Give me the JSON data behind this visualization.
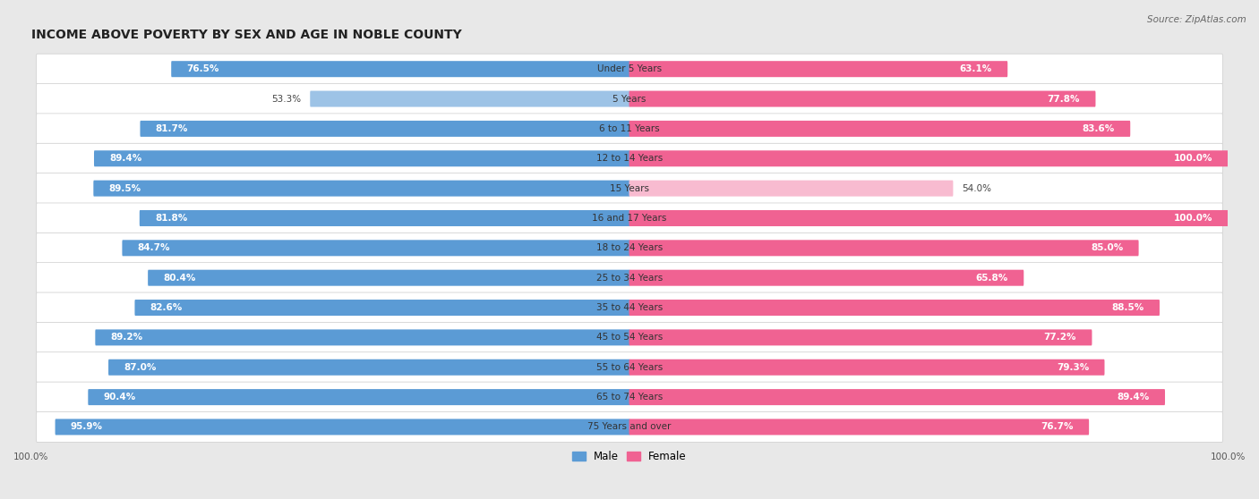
{
  "title": "INCOME ABOVE POVERTY BY SEX AND AGE IN NOBLE COUNTY",
  "source": "Source: ZipAtlas.com",
  "categories": [
    "Under 5 Years",
    "5 Years",
    "6 to 11 Years",
    "12 to 14 Years",
    "15 Years",
    "16 and 17 Years",
    "18 to 24 Years",
    "25 to 34 Years",
    "35 to 44 Years",
    "45 to 54 Years",
    "55 to 64 Years",
    "65 to 74 Years",
    "75 Years and over"
  ],
  "male": [
    76.5,
    53.3,
    81.7,
    89.4,
    89.5,
    81.8,
    84.7,
    80.4,
    82.6,
    89.2,
    87.0,
    90.4,
    95.9
  ],
  "female": [
    63.1,
    77.8,
    83.6,
    100.0,
    54.0,
    100.0,
    85.0,
    65.8,
    88.5,
    77.2,
    79.3,
    89.4,
    76.7
  ],
  "male_color_dark": "#5b9bd5",
  "male_color_light": "#9dc3e6",
  "female_color_dark": "#f06292",
  "female_color_light": "#f8bbd0",
  "male_label": "Male",
  "female_label": "Female",
  "bg_color": "#e8e8e8",
  "row_bg": "#f2f2f2",
  "title_fontsize": 10,
  "label_fontsize": 7.5,
  "tick_fontsize": 7.5,
  "source_fontsize": 7.5
}
